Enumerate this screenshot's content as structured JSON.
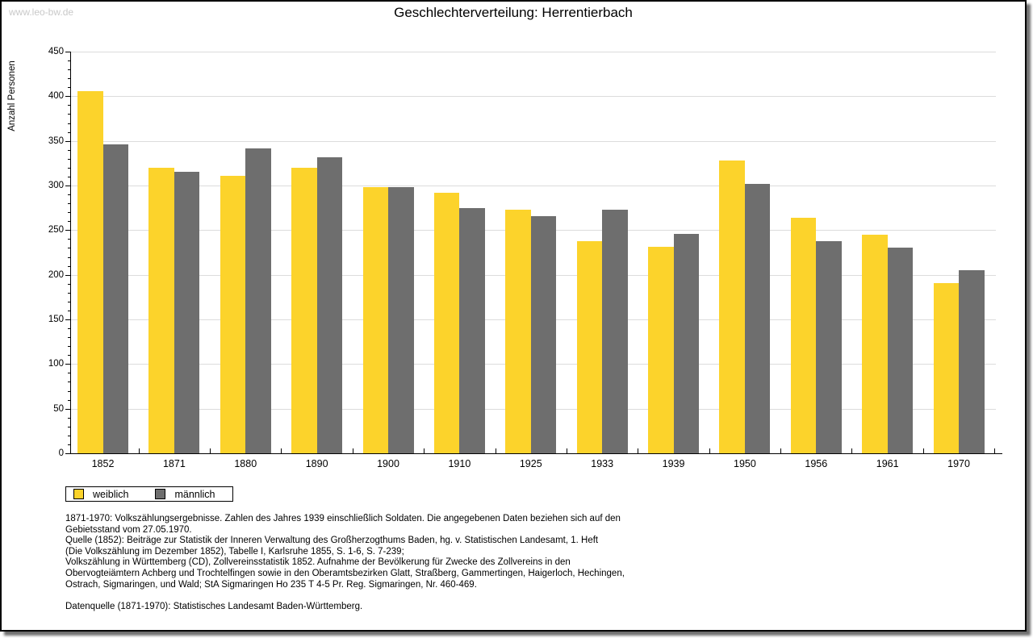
{
  "watermark": "www.leo-bw.de",
  "title": "Geschlechterverteilung: Herrentierbach",
  "chart_data": {
    "type": "bar",
    "title": "Geschlechterverteilung: Herrentierbach",
    "xlabel": "",
    "ylabel": "Anzahl Personen",
    "ylim": [
      0,
      450
    ],
    "ytick_step": 50,
    "minor_tick_step": 10,
    "grid": true,
    "legend_position": "bottom-left",
    "categories": [
      "1852",
      "1871",
      "1880",
      "1890",
      "1900",
      "1910",
      "1925",
      "1933",
      "1939",
      "1950",
      "1956",
      "1961",
      "1970"
    ],
    "series": [
      {
        "name": "weiblich",
        "color": "#fcd32b",
        "values": [
          406,
          320,
          311,
          320,
          298,
          292,
          273,
          238,
          231,
          328,
          264,
          245,
          191
        ]
      },
      {
        "name": "männlich",
        "color": "#6e6e6e",
        "values": [
          346,
          315,
          342,
          332,
          298,
          275,
          266,
          273,
          246,
          302,
          238,
          230,
          205
        ]
      }
    ]
  },
  "colors": {
    "weiblich": "#fcd32b",
    "männlich": "#6e6e6e",
    "gridline": "#dcdcdc",
    "watermark": "#c9c9c9"
  },
  "footnotes": {
    "lines": [
      "1871-1970: Volkszählungsergebnisse. Zahlen des Jahres 1939 einschließlich Soldaten. Die angegebenen Daten beziehen sich auf den",
      "Gebietsstand vom 27.05.1970.",
      "Quelle (1852): Beiträge zur Statistik der Inneren Verwaltung des Großherzogthums Baden, hg. v. Statistischen Landesamt, 1. Heft",
      "(Die Volkszählung im Dezember 1852), Tabelle I, Karlsruhe 1855, S. 1-6, S. 7-239;",
      "Volkszählung in Württemberg (CD), Zollvereinsstatistik 1852. Aufnahme der Bevölkerung für Zwecke des Zollvereins in den",
      "Obervogteiämtern Achberg und Trochtelfingen sowie in den Oberamtsbezirken Glatt, Straßberg, Gammertingen, Haigerloch, Hechingen,",
      "Ostrach, Sigmaringen, und Wald; StA Sigmaringen Ho 235 T 4-5 Pr. Reg. Sigmaringen, Nr. 460-469.",
      "",
      "Datenquelle (1871-1970): Statistisches Landesamt Baden-Württemberg."
    ]
  }
}
